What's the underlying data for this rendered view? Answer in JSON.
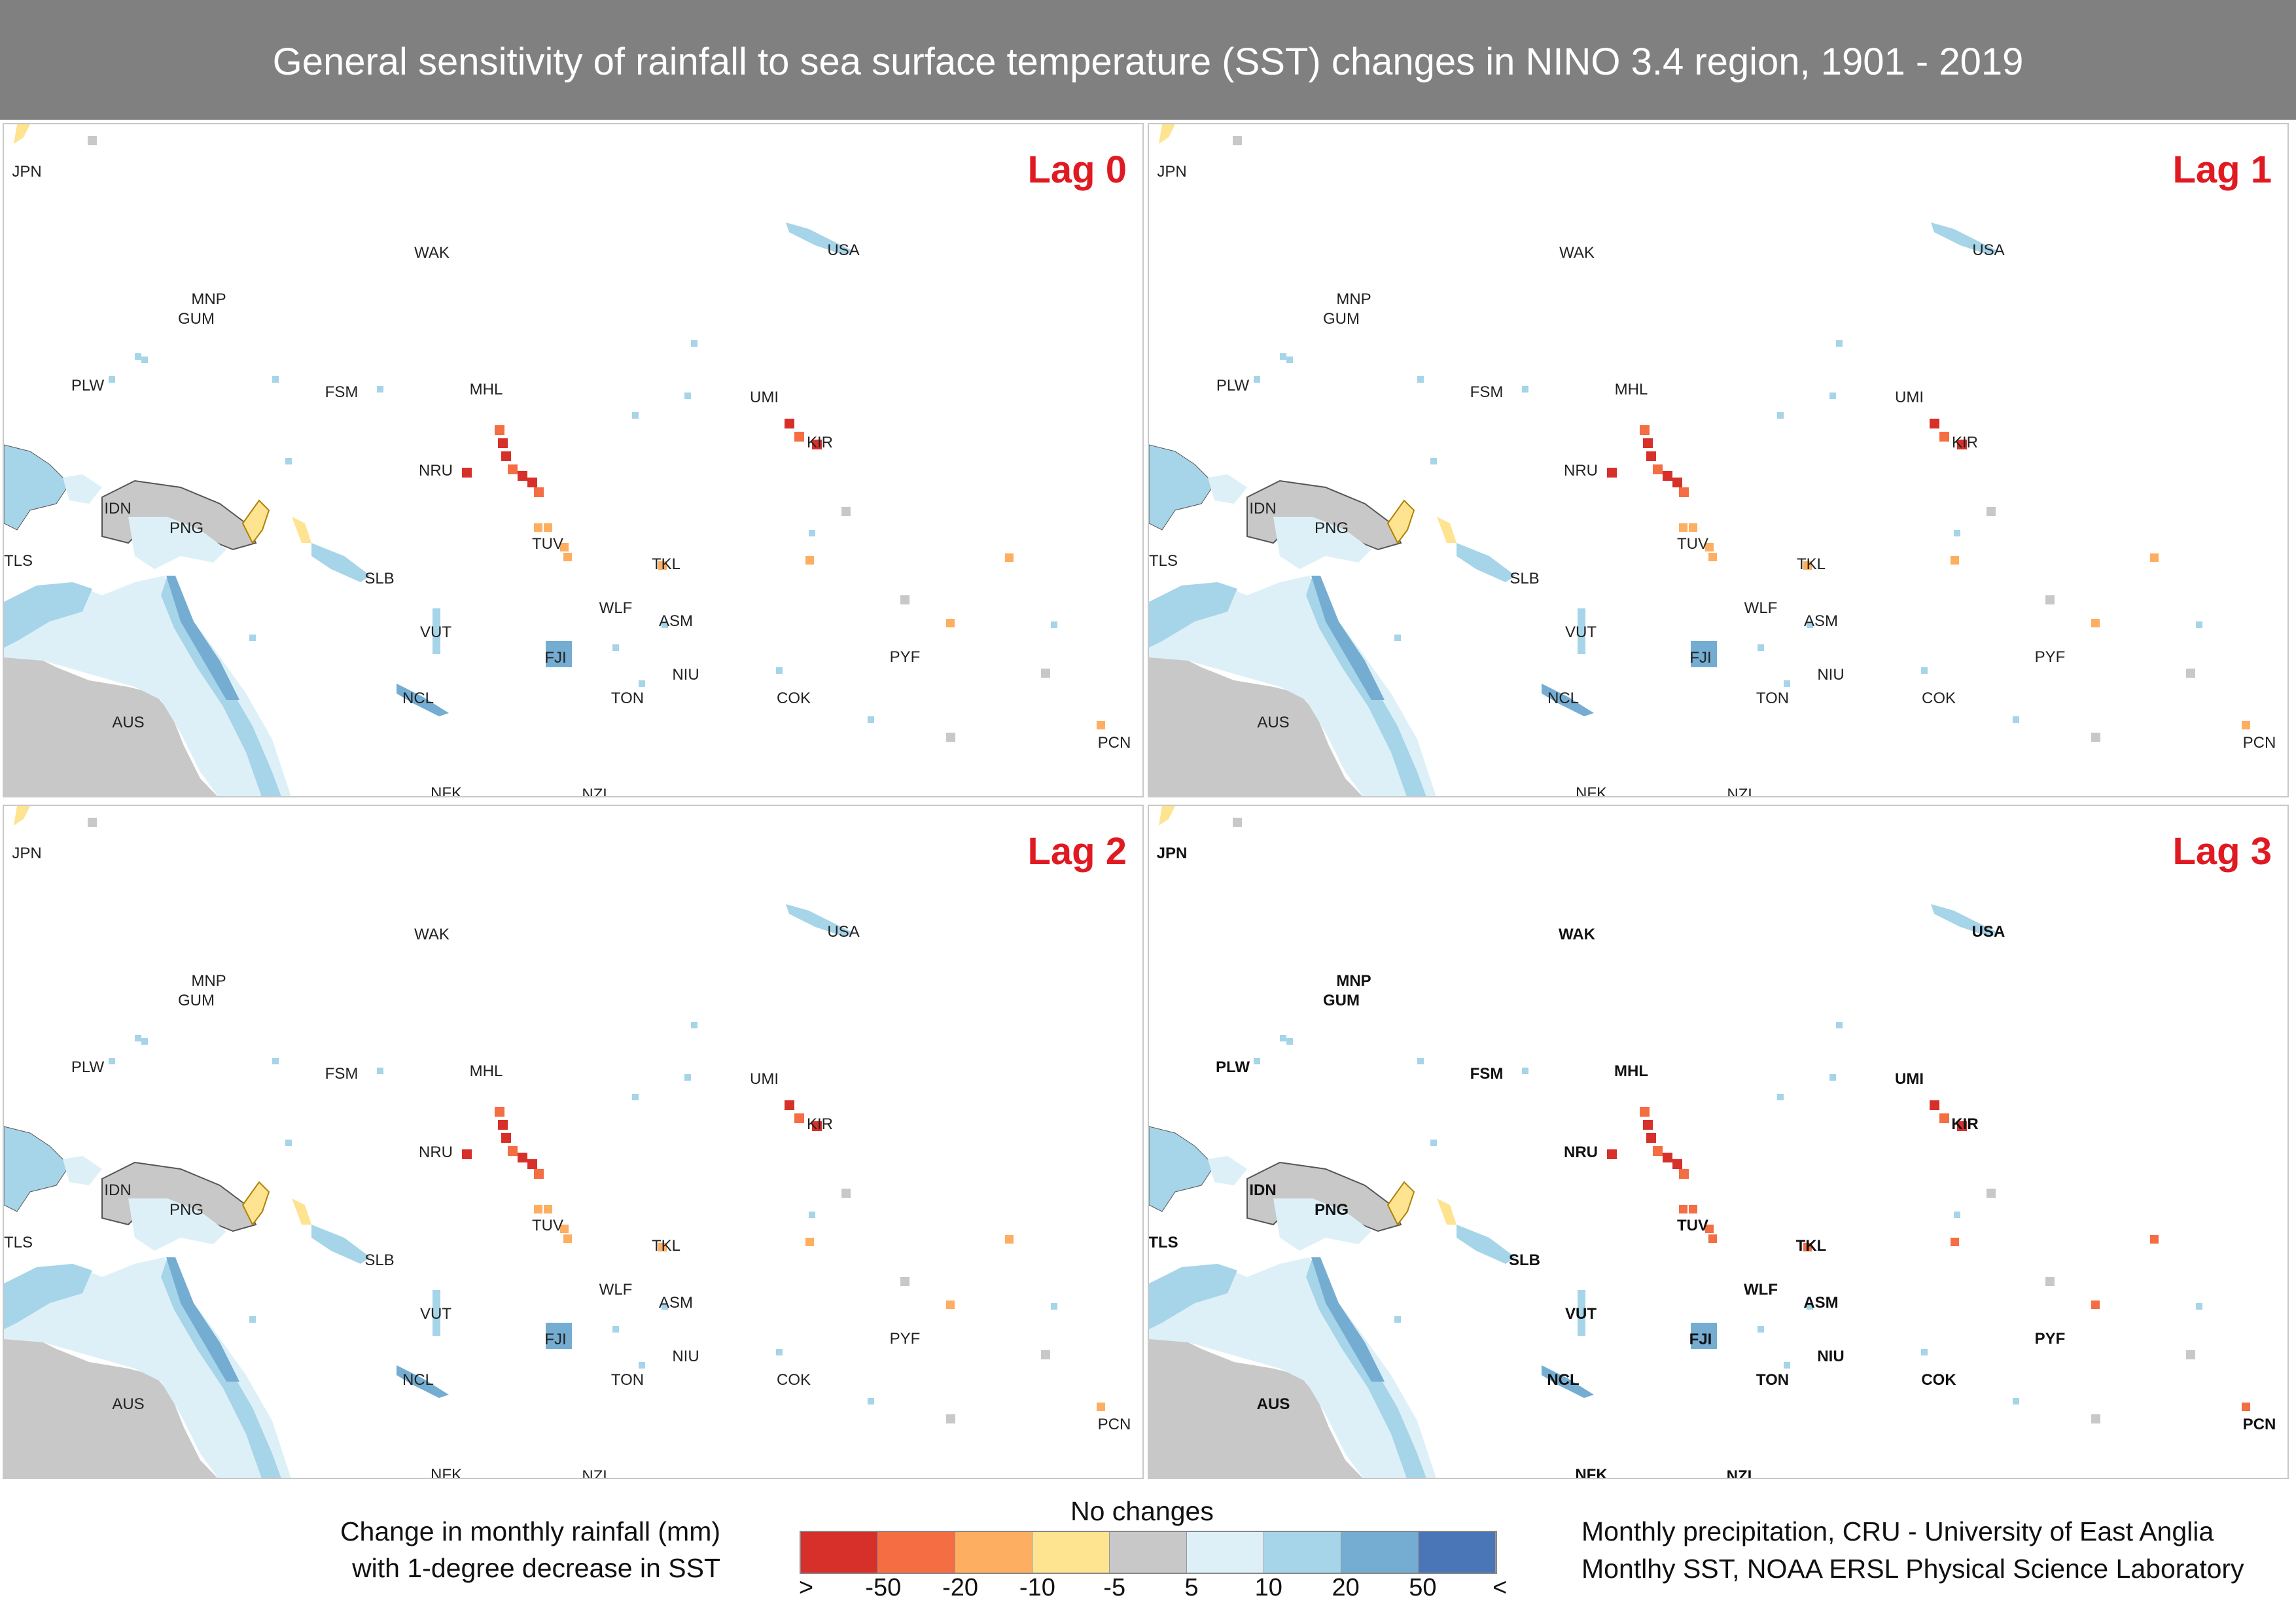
{
  "title": "General sensitivity of rainfall to sea surface temperature (SST) changes in NINO 3.4 region, 1901 - 2019",
  "panels": [
    {
      "lag": "Lag 0"
    },
    {
      "lag": "Lag 1"
    },
    {
      "lag": "Lag 2"
    },
    {
      "lag": "Lag 3"
    }
  ],
  "country_labels": [
    "JPN",
    "WAK",
    "USA",
    "MNP",
    "GUM",
    "PLW",
    "FSM",
    "MHL",
    "UMI",
    "NRU",
    "KIR",
    "IDN",
    "PNG",
    "TUV",
    "TKL",
    "TLS",
    "SLB",
    "WLF",
    "ASM",
    "VUT",
    "FJI",
    "NIU",
    "PYF",
    "NCL",
    "TON",
    "COK",
    "AUS",
    "PCN",
    "NFK",
    "NZL"
  ],
  "legend": {
    "title_line1": "Change in monthly rainfall (mm)",
    "title_line2": "with 1-degree decrease in SST",
    "no_changes": "No changes",
    "colors": [
      "#d7302a",
      "#f46d43",
      "#fdae61",
      "#fee391",
      "#c8c8c8",
      "#ddf0f8",
      "#a6d4e8",
      "#74add1",
      "#4a76b8"
    ],
    "ticks": [
      ">",
      "-50",
      "-20",
      "-10",
      "-5",
      "5",
      "10",
      "20",
      "50",
      "<"
    ]
  },
  "sources": {
    "line1": "Monthly precipitation, CRU - University of East Anglia",
    "line2": "Montlhy SST,  NOAA ERSL Physical Science Laboratory"
  }
}
